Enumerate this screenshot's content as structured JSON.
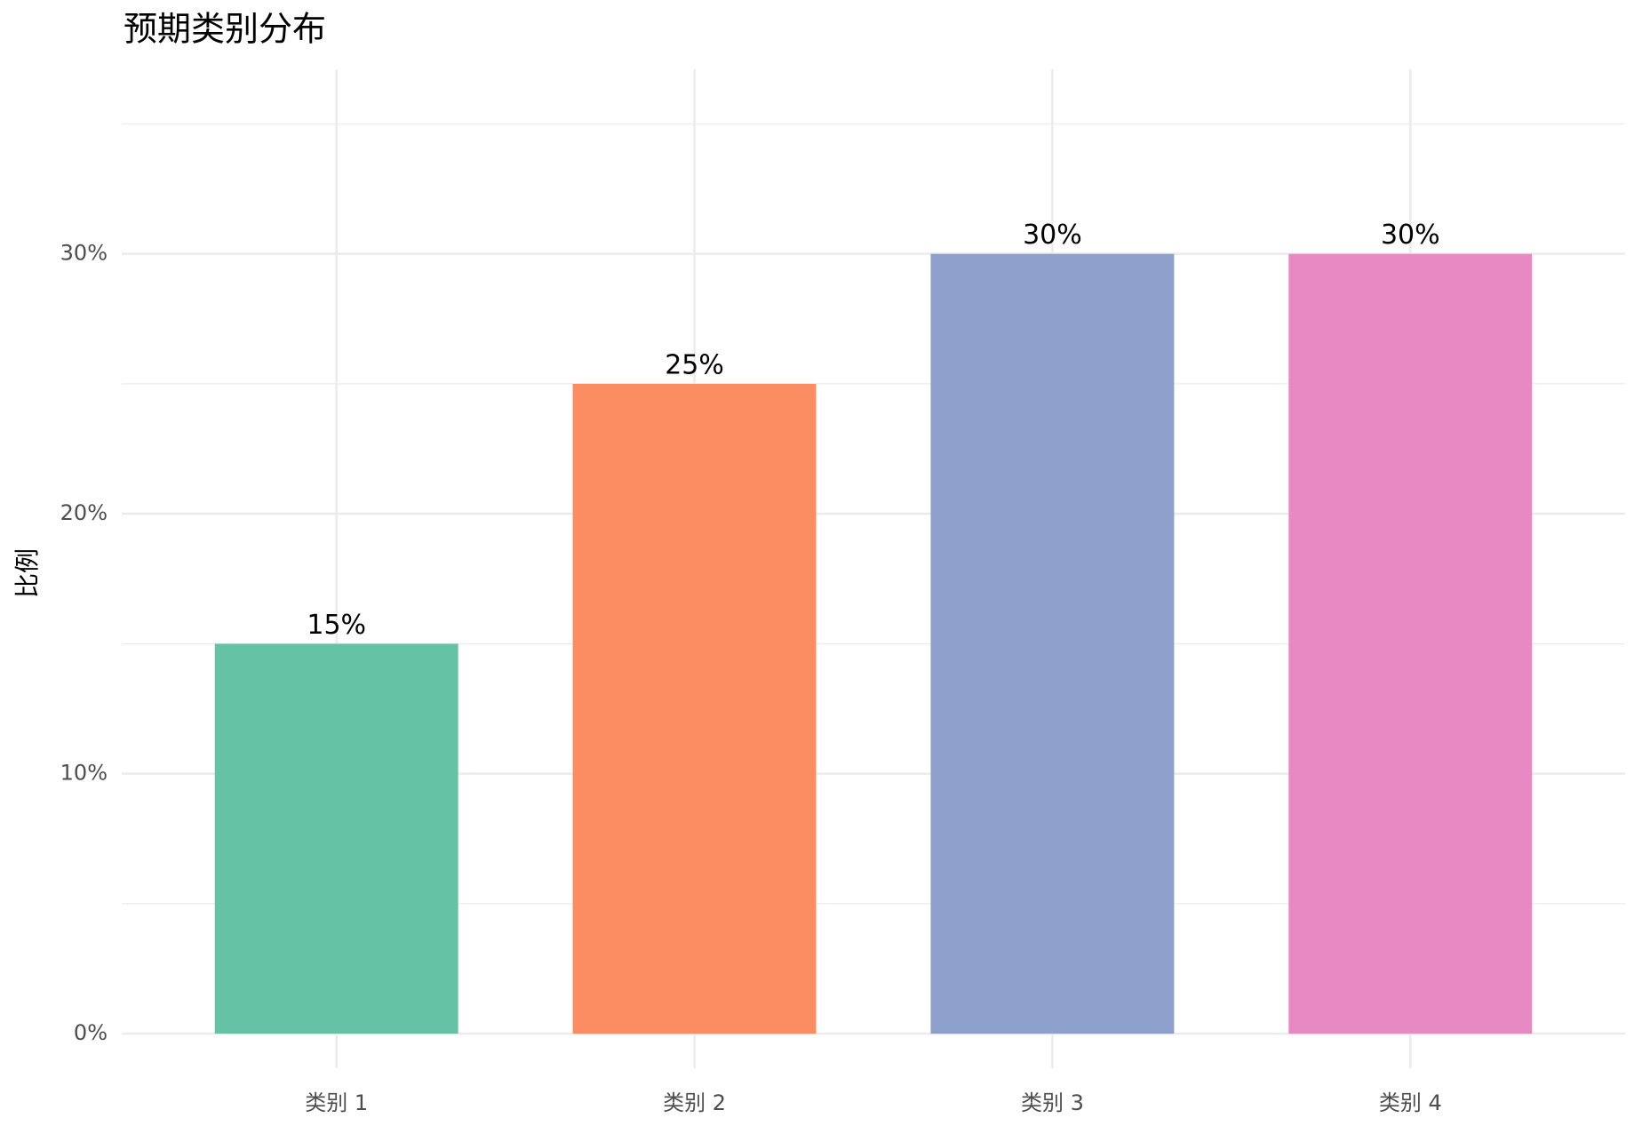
{
  "chart_data": {
    "type": "bar",
    "title": "预期类别分布",
    "y_label": "比例",
    "categories": [
      "类别 1",
      "类别 2",
      "类别 3",
      "类别 4"
    ],
    "values": [
      15,
      25,
      30,
      30
    ],
    "value_labels": [
      "15%",
      "25%",
      "30%",
      "30%"
    ],
    "colors": [
      "#66c2a5",
      "#fc8d62",
      "#8da0cb",
      "#e78ac3"
    ],
    "ylim": [
      -1.33,
      37.1
    ],
    "yticks": [
      {
        "value": 0,
        "label": "0%"
      },
      {
        "value": 10,
        "label": "10%"
      },
      {
        "value": 20,
        "label": "20%"
      },
      {
        "value": 30,
        "label": "30%"
      }
    ],
    "grid": true
  }
}
